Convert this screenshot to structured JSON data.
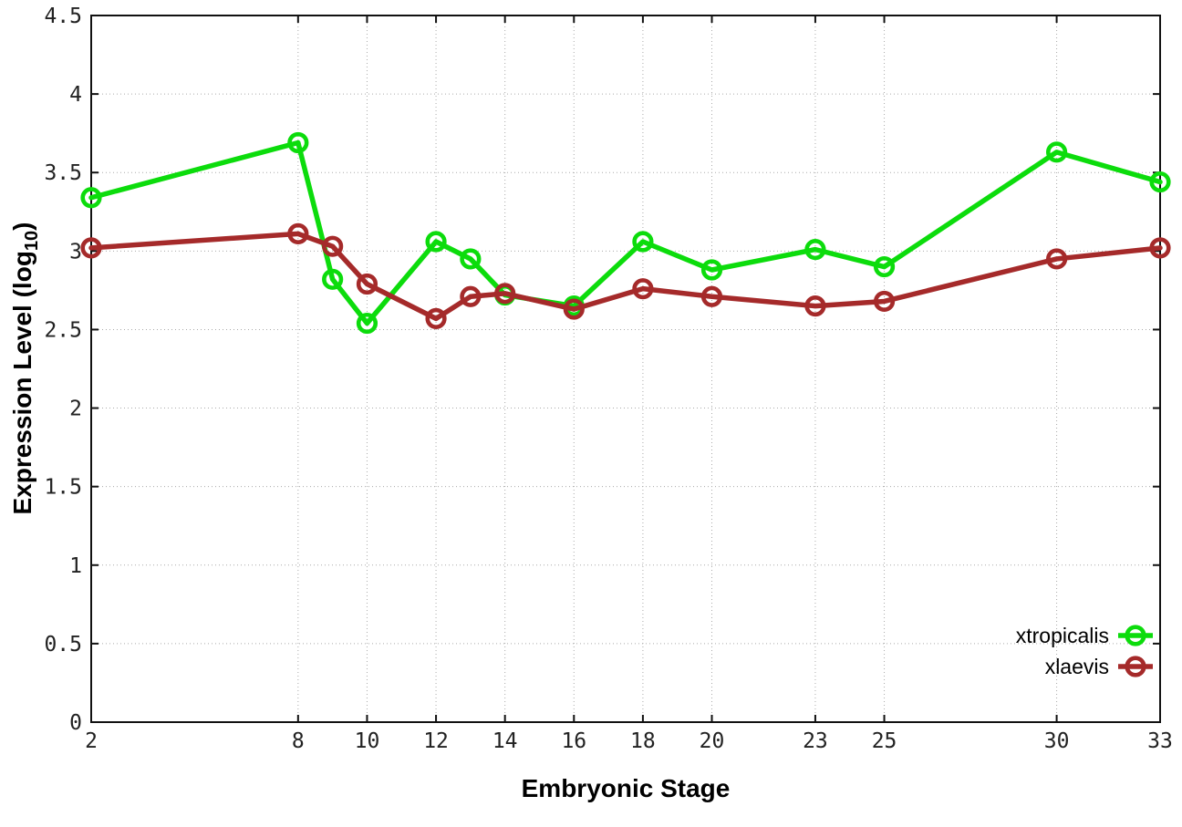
{
  "chart_data": {
    "type": "line",
    "title": "",
    "xlabel": "Embryonic Stage",
    "ylabel": "Expression Level (log10)",
    "ylabel_parts": {
      "main": "Expression Level (log",
      "sub": "10",
      "end": ")"
    },
    "x": [
      2,
      8,
      9,
      10,
      12,
      13,
      14,
      16,
      18,
      20,
      23,
      25,
      30,
      33
    ],
    "series": [
      {
        "name": "xtropicalis",
        "color": "#0cdc0c",
        "values": [
          3.34,
          3.69,
          2.82,
          2.54,
          3.06,
          2.95,
          2.72,
          2.65,
          3.06,
          2.88,
          3.01,
          2.9,
          3.63,
          3.44
        ]
      },
      {
        "name": "xlaevis",
        "color": "#a52a2a",
        "values": [
          3.02,
          3.11,
          3.03,
          2.79,
          2.57,
          2.71,
          2.73,
          2.63,
          2.76,
          2.71,
          2.65,
          2.68,
          2.95,
          3.02
        ]
      }
    ],
    "xlim": [
      2,
      33
    ],
    "ylim": [
      0,
      4.5
    ],
    "xticks": [
      2,
      8,
      10,
      12,
      14,
      16,
      18,
      20,
      23,
      25,
      30,
      33
    ],
    "xtick_labels": [
      "2",
      "8",
      "10",
      "12",
      "14",
      "16",
      "18",
      "20",
      "23",
      "25",
      "30",
      "33"
    ],
    "yticks": [
      0,
      0.5,
      1,
      1.5,
      2,
      2.5,
      3,
      3.5,
      4,
      4.5
    ],
    "ytick_labels": [
      "0",
      "0.5",
      "1",
      "1.5",
      "2",
      "2.5",
      "3",
      "3.5",
      "4",
      "4.5"
    ],
    "grid": true,
    "grid_style": "dotted",
    "marker": "open-circle",
    "legend_position": "bottom-right",
    "colors": {
      "border": "#111111",
      "grid": "#aaaaaa",
      "tick_label": "#222222",
      "background": "#ffffff"
    }
  }
}
